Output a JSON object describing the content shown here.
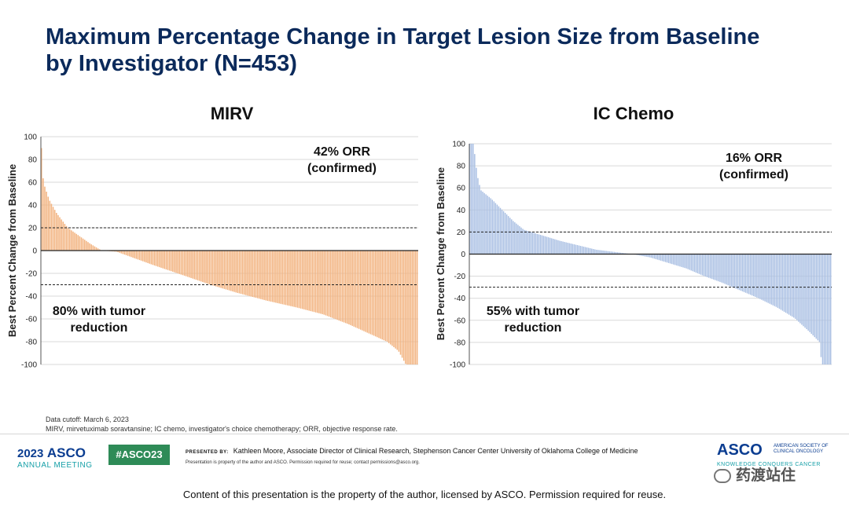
{
  "slide": {
    "title": "Maximum Percentage Change in Target Lesion Size from Baseline by Investigator (N=453)",
    "footnotes": [
      "Data cutoff: March 6, 2023",
      "MIRV, mirvetuximab soravtansine; IC chemo, investigator's choice chemotherapy; ORR, objective response rate."
    ]
  },
  "footer": {
    "meeting_year": "2023",
    "meeting_org": "ASCO",
    "meeting_sub": "ANNUAL MEETING",
    "hashtag": "#ASCO23",
    "presented_label": "PRESENTED BY:",
    "presenter": "Kathleen Moore, Associate Director of Clinical Research, Stephenson Cancer Center University of Oklahoma College of Medicine",
    "property_note": "Presentation is property of the author and ASCO. Permission required for reuse; contact permissions@asco.org.",
    "brand": "ASCO",
    "brand_full": "AMERICAN SOCIETY OF CLINICAL ONCOLOGY",
    "brand_tagline": "KNOWLEDGE CONQUERS CANCER",
    "watermark": "药渡站住",
    "notice": "Content of this presentation is the property of the author, licensed by ASCO. Permission required for reuse."
  },
  "chart_data": [
    {
      "type": "bar",
      "title": "MIRV",
      "ylabel": "Best Percent Change from Baseline",
      "ylim": [
        -100,
        100
      ],
      "yticks": [
        100,
        80,
        60,
        40,
        20,
        0,
        -20,
        -40,
        -60,
        -80,
        -100
      ],
      "reference_lines": [
        20,
        -30
      ],
      "color": "#f2b27e",
      "annotations": [
        "42% ORR",
        "(confirmed)",
        "80% with tumor",
        "reduction"
      ],
      "n_bars": 227,
      "profile": [
        [
          0,
          90
        ],
        [
          0.005,
          60
        ],
        [
          0.02,
          45
        ],
        [
          0.04,
          33
        ],
        [
          0.07,
          20
        ],
        [
          0.1,
          13
        ],
        [
          0.13,
          6
        ],
        [
          0.16,
          0
        ],
        [
          0.2,
          -1
        ],
        [
          0.25,
          -7
        ],
        [
          0.3,
          -13
        ],
        [
          0.38,
          -22
        ],
        [
          0.45,
          -30
        ],
        [
          0.52,
          -37
        ],
        [
          0.6,
          -44
        ],
        [
          0.68,
          -50
        ],
        [
          0.75,
          -56
        ],
        [
          0.82,
          -65
        ],
        [
          0.88,
          -74
        ],
        [
          0.92,
          -80
        ],
        [
          0.95,
          -88
        ],
        [
          0.97,
          -100
        ],
        [
          1.0,
          -100
        ]
      ]
    },
    {
      "type": "bar",
      "title": "IC Chemo",
      "ylabel": "Best Percent Change from Baseline",
      "ylim": [
        -100,
        100
      ],
      "yticks": [
        100,
        80,
        60,
        40,
        20,
        0,
        -20,
        -40,
        -60,
        -80,
        -100
      ],
      "reference_lines": [
        20,
        -30
      ],
      "color": "#a9bfe3",
      "annotations": [
        "16% ORR",
        "(confirmed)",
        "55% with tumor",
        "reduction"
      ],
      "n_bars": 226,
      "profile": [
        [
          0,
          100
        ],
        [
          0.01,
          100
        ],
        [
          0.02,
          72
        ],
        [
          0.03,
          58
        ],
        [
          0.06,
          50
        ],
        [
          0.09,
          40
        ],
        [
          0.12,
          30
        ],
        [
          0.15,
          22
        ],
        [
          0.2,
          17
        ],
        [
          0.25,
          12
        ],
        [
          0.3,
          8
        ],
        [
          0.35,
          4
        ],
        [
          0.4,
          2
        ],
        [
          0.45,
          0
        ],
        [
          0.5,
          -3
        ],
        [
          0.55,
          -8
        ],
        [
          0.6,
          -13
        ],
        [
          0.65,
          -20
        ],
        [
          0.7,
          -26
        ],
        [
          0.75,
          -33
        ],
        [
          0.8,
          -40
        ],
        [
          0.85,
          -48
        ],
        [
          0.9,
          -58
        ],
        [
          0.94,
          -70
        ],
        [
          0.97,
          -80
        ],
        [
          0.975,
          -100
        ],
        [
          1.0,
          -100
        ]
      ]
    }
  ]
}
